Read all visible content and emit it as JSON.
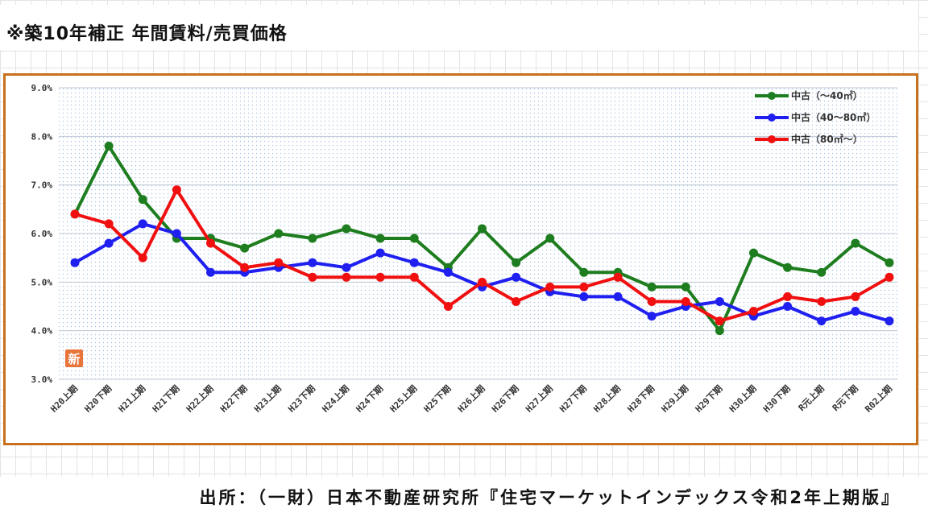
{
  "header": {
    "title": "※築10年補正 年間賃料/売買価格"
  },
  "footer": {
    "source": "出所：（一財）日本不動産研究所『住宅マーケットインデックス令和2年上期版』"
  },
  "chart_data": {
    "type": "line",
    "title": "",
    "xlabel": "",
    "ylabel": "",
    "ylim": [
      3.0,
      9.0
    ],
    "y_ticks": [
      "9.0%",
      "8.0%",
      "7.0%",
      "6.0%",
      "5.0%",
      "4.0%",
      "3.0%"
    ],
    "grid": true,
    "legend_position": "top-right",
    "categories": [
      "H20上期",
      "H20下期",
      "H21上期",
      "H21下期",
      "H22上期",
      "H22下期",
      "H23上期",
      "H23下期",
      "H24上期",
      "H24下期",
      "H25上期",
      "H25下期",
      "H26上期",
      "H26下期",
      "H27上期",
      "H27下期",
      "H28上期",
      "H28下期",
      "H29上期",
      "H29下期",
      "H30上期",
      "H30下期",
      "R元上期",
      "R元下期",
      "R02上期"
    ],
    "series": [
      {
        "name": "中古（～40㎡）",
        "color": "#1e7d1e",
        "values": [
          6.4,
          7.8,
          6.7,
          5.9,
          5.9,
          5.7,
          6.0,
          5.9,
          6.1,
          5.9,
          5.9,
          5.3,
          6.1,
          5.4,
          5.9,
          5.2,
          5.2,
          4.9,
          4.9,
          4.0,
          5.6,
          5.3,
          5.2,
          5.8,
          5.4
        ]
      },
      {
        "name": "中古（40～80㎡）",
        "color": "#1f1ff0",
        "values": [
          5.4,
          5.8,
          6.2,
          6.0,
          5.2,
          5.2,
          5.3,
          5.4,
          5.3,
          5.6,
          5.4,
          5.2,
          4.9,
          5.1,
          4.8,
          4.7,
          4.7,
          4.3,
          4.5,
          4.6,
          4.3,
          4.5,
          4.2,
          4.4,
          4.2
        ]
      },
      {
        "name": "中古（80㎡～）",
        "color": "#f01010",
        "values": [
          6.4,
          6.2,
          5.5,
          6.9,
          5.8,
          5.3,
          5.4,
          5.1,
          5.1,
          5.1,
          5.1,
          4.5,
          5.0,
          4.6,
          4.9,
          4.9,
          5.1,
          4.6,
          4.6,
          4.2,
          4.4,
          4.7,
          4.6,
          4.7,
          5.1
        ]
      }
    ],
    "badge": {
      "text": "新",
      "color": "#e8743a",
      "icon": "new-badge-icon"
    }
  }
}
